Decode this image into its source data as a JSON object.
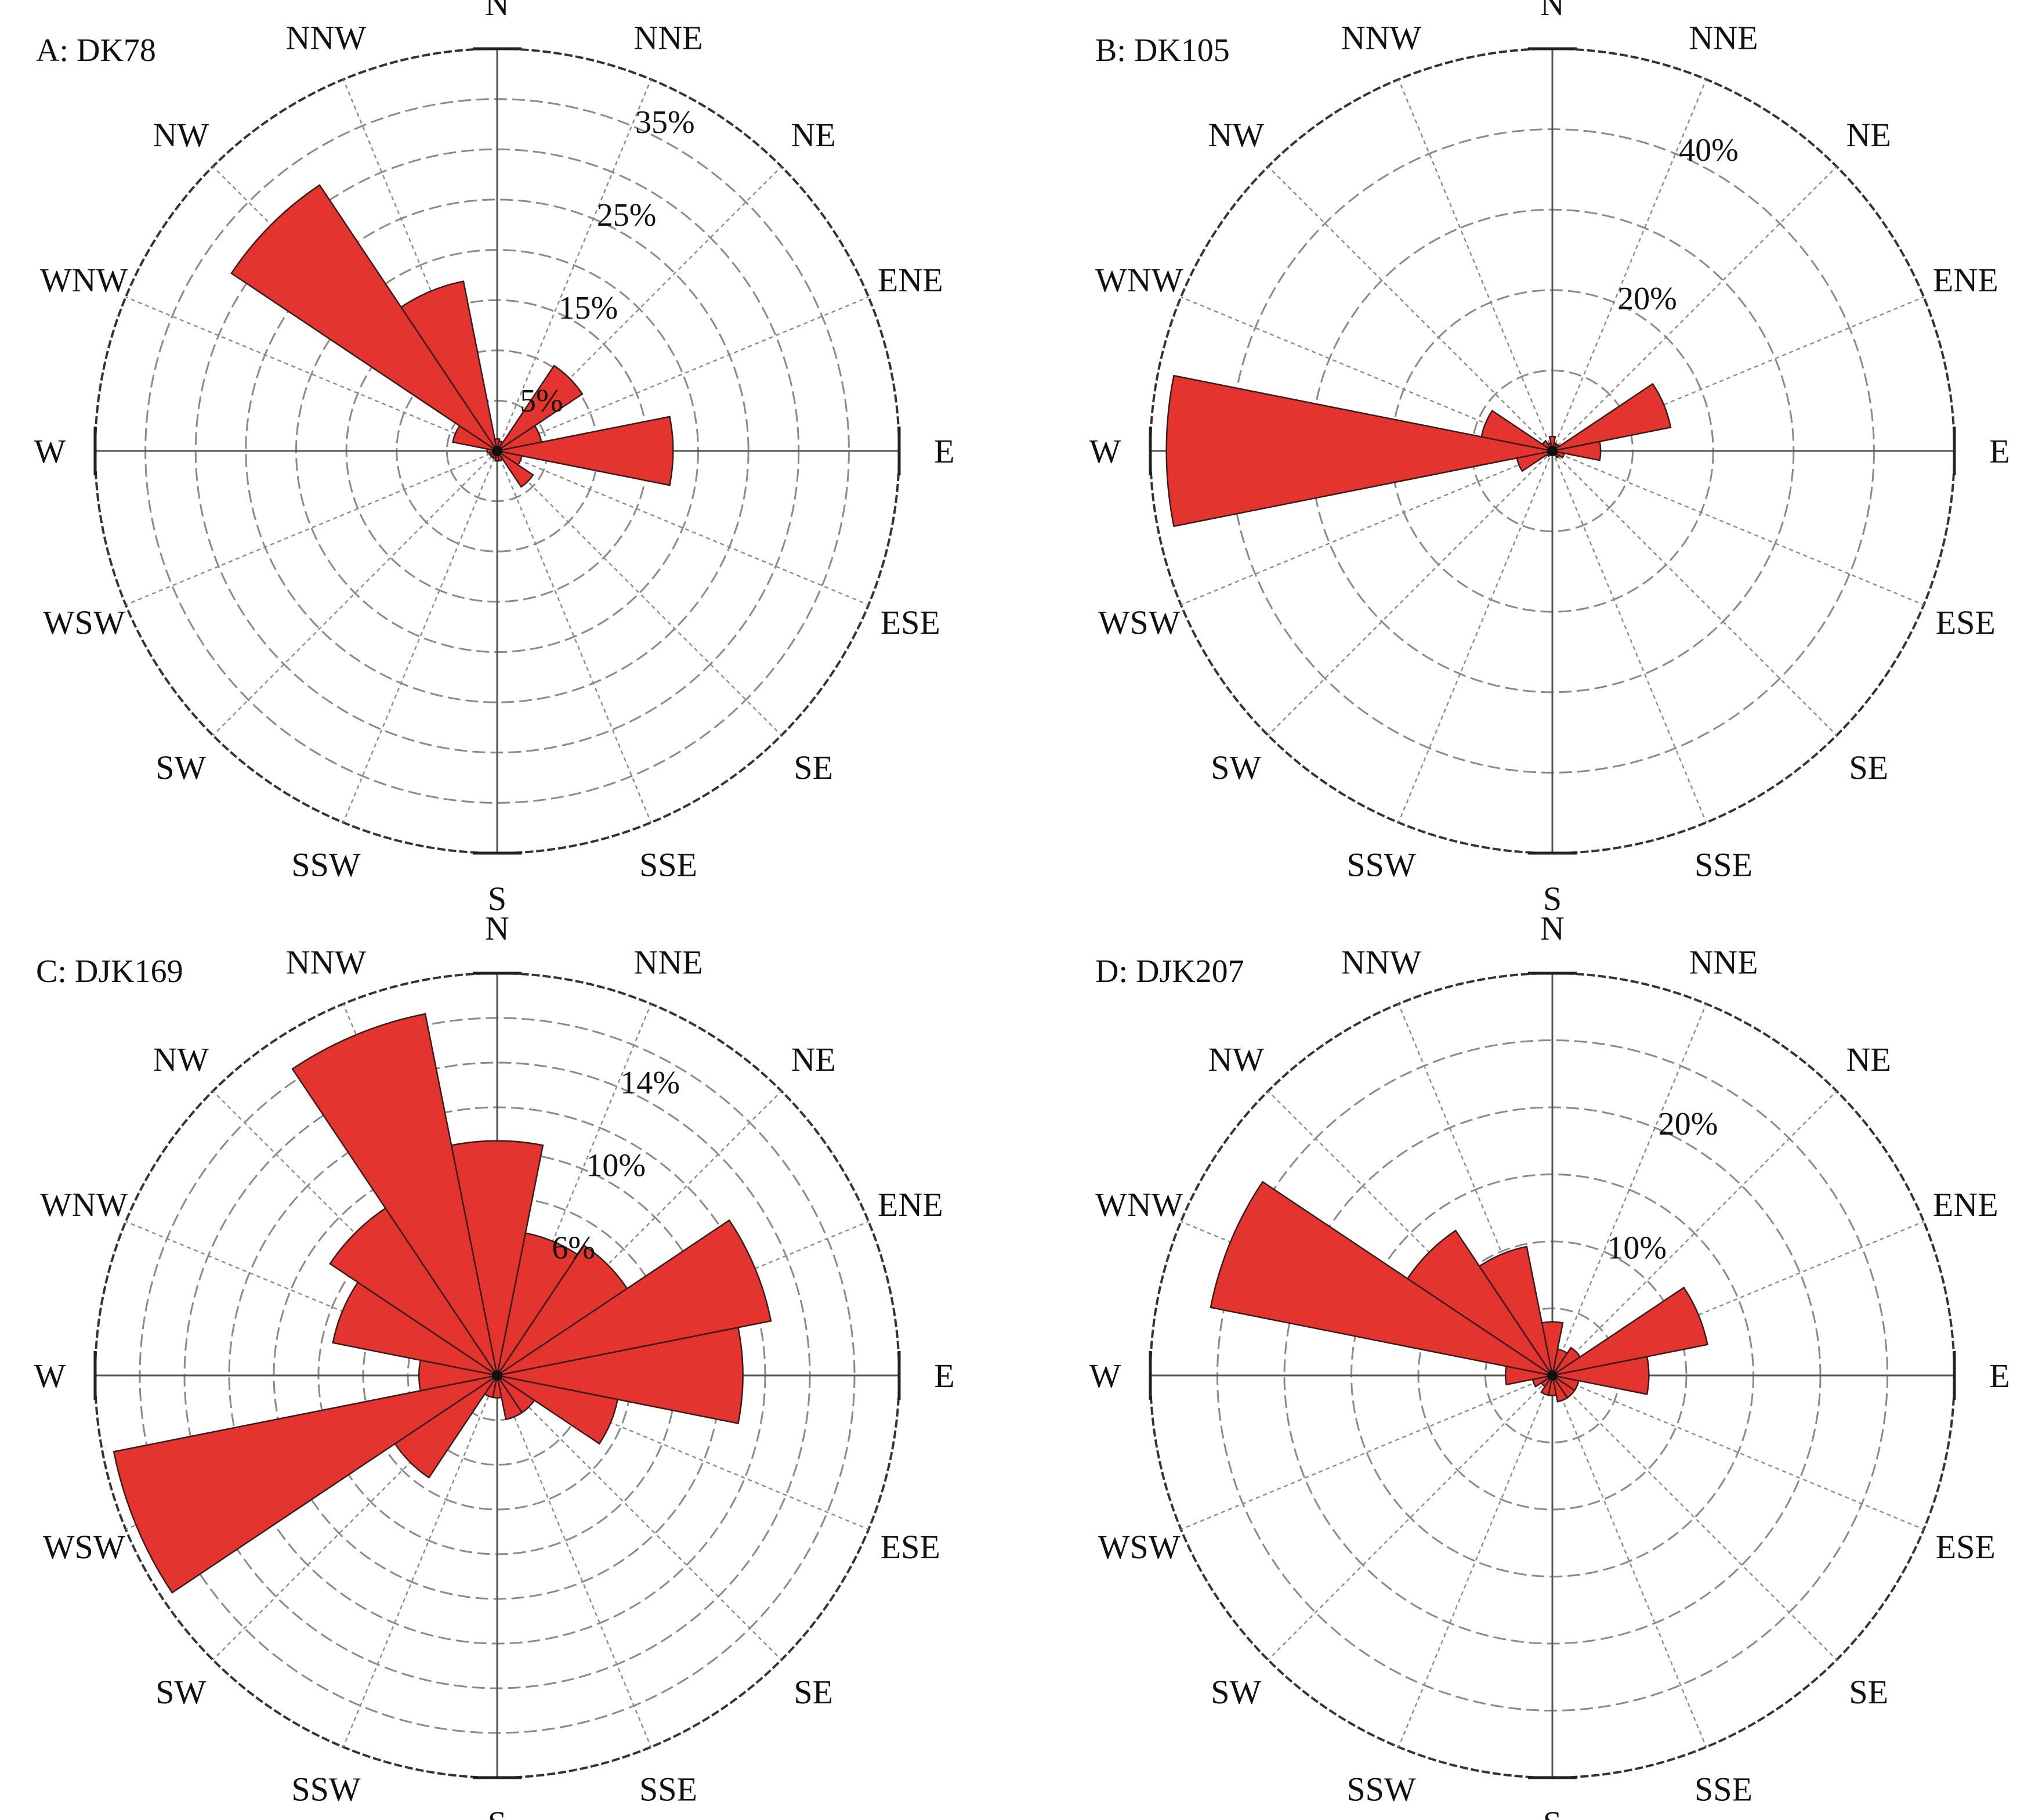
{
  "figure": {
    "directions": [
      "N",
      "NNE",
      "NE",
      "ENE",
      "E",
      "ESE",
      "SE",
      "SSE",
      "S",
      "SSW",
      "SW",
      "WSW",
      "W",
      "WNW",
      "NW",
      "NNW"
    ],
    "colors": {
      "petal": "#e3342f",
      "petal_edge": "#3a1a1a",
      "grid": "#8a8a8a",
      "outer": "#333333"
    }
  },
  "chart_data": [
    {
      "type": "rose",
      "panel_label": "A: DK78",
      "max": 40,
      "ring_values": [
        5,
        10,
        15,
        20,
        25,
        30,
        35,
        40
      ],
      "ring_labels": [
        {
          "value": 5,
          "text": "5%"
        },
        {
          "value": 15,
          "text": "15%"
        },
        {
          "value": 25,
          "text": "25%"
        },
        {
          "value": 35,
          "text": "35%"
        }
      ],
      "values": [
        1.2,
        1.0,
        10.2,
        4.5,
        17.5,
        2.5,
        4.3,
        1.0,
        1.0,
        0.8,
        0.8,
        0.8,
        1.0,
        4.5,
        31.8,
        17.2
      ]
    },
    {
      "type": "rose",
      "panel_label": "B: DK105",
      "max": 50,
      "ring_values": [
        10,
        20,
        30,
        40,
        50
      ],
      "ring_labels": [
        {
          "value": 20,
          "text": "20%"
        },
        {
          "value": 40,
          "text": "40%"
        }
      ],
      "values": [
        1.8,
        1.0,
        1.0,
        15.0,
        6.0,
        1.5,
        1.0,
        0.5,
        0.5,
        0.5,
        0.8,
        4.5,
        48.0,
        9.0,
        1.5,
        1.0
      ]
    },
    {
      "type": "rose",
      "panel_label": "C: DJK169",
      "max": 18,
      "ring_values": [
        2,
        4,
        6,
        8,
        10,
        12,
        14,
        16,
        18
      ],
      "ring_labels": [
        {
          "value": 6,
          "text": "6%"
        },
        {
          "value": 10,
          "text": "10%"
        },
        {
          "value": 14,
          "text": "14%"
        }
      ],
      "values": [
        10.5,
        6.5,
        7.0,
        12.5,
        11.0,
        5.5,
        2.0,
        2.0,
        1.0,
        1.0,
        5.5,
        17.5,
        3.5,
        7.5,
        9.0,
        16.5
      ]
    },
    {
      "type": "rose",
      "panel_label": "D: DJK207",
      "max": 30,
      "ring_values": [
        5,
        10,
        15,
        20,
        25,
        30
      ],
      "ring_labels": [
        {
          "value": 10,
          "text": "10%"
        },
        {
          "value": 20,
          "text": "20%"
        }
      ],
      "values": [
        4.0,
        2.0,
        2.5,
        11.8,
        7.2,
        2.0,
        2.0,
        2.0,
        1.5,
        1.5,
        1.0,
        1.5,
        3.5,
        26.0,
        13.0,
        9.8
      ]
    }
  ]
}
